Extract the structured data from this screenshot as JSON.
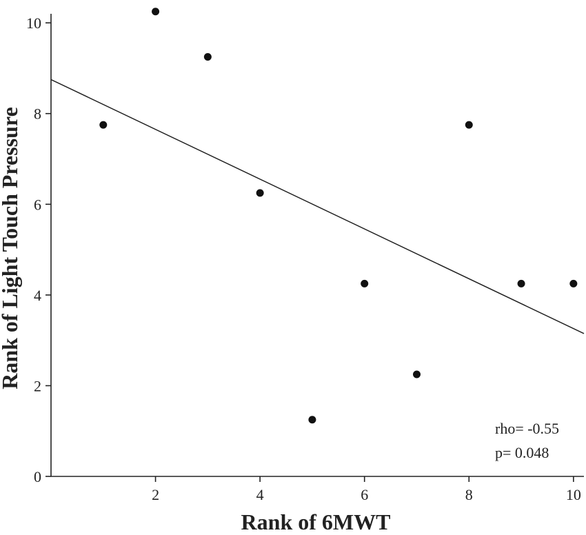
{
  "chart_data": {
    "type": "scatter",
    "title": "",
    "xlabel": "Rank of 6MWT",
    "ylabel": "Rank of Light Touch Pressure",
    "xlim": [
      0,
      10.2
    ],
    "ylim": [
      0,
      10.2
    ],
    "xticks": [
      2,
      4,
      6,
      8,
      10
    ],
    "yticks": [
      0,
      2,
      4,
      6,
      8,
      10
    ],
    "points": [
      {
        "x": 1,
        "y": 7.75
      },
      {
        "x": 2,
        "y": 10.25
      },
      {
        "x": 3,
        "y": 9.25
      },
      {
        "x": 4,
        "y": 6.25
      },
      {
        "x": 5,
        "y": 1.25
      },
      {
        "x": 6,
        "y": 4.25
      },
      {
        "x": 7,
        "y": 2.25
      },
      {
        "x": 8,
        "y": 7.75
      },
      {
        "x": 9,
        "y": 4.25
      },
      {
        "x": 10,
        "y": 4.25
      }
    ],
    "trendline": {
      "x": [
        0,
        10.2
      ],
      "y": [
        8.75,
        3.15
      ]
    },
    "annotations": [
      "rho= -0.55",
      "p= 0.048"
    ],
    "grid": false,
    "legend": "none"
  }
}
